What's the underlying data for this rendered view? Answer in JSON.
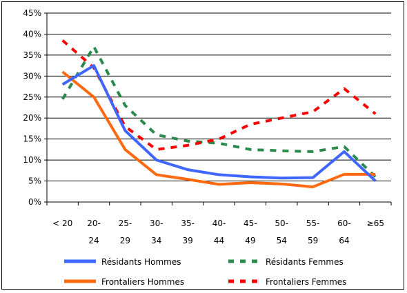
{
  "chart_data": {
    "type": "line",
    "title": "",
    "xlabel": "",
    "ylabel": "",
    "ylim": [
      0,
      45
    ],
    "yticks": [
      0,
      5,
      10,
      15,
      20,
      25,
      30,
      35,
      40,
      45
    ],
    "ytick_labels": [
      "0%",
      "5%",
      "10%",
      "15%",
      "20%",
      "25%",
      "30%",
      "35%",
      "40%",
      "45%"
    ],
    "grid": true,
    "legend_position": "bottom",
    "categories": [
      {
        "line1": "< 20",
        "line2": ""
      },
      {
        "line1": "20-",
        "line2": "24"
      },
      {
        "line1": "25-",
        "line2": "29"
      },
      {
        "line1": "30-",
        "line2": "34"
      },
      {
        "line1": "35-",
        "line2": "39"
      },
      {
        "line1": "40-",
        "line2": "44"
      },
      {
        "line1": "45-",
        "line2": "49"
      },
      {
        "line1": "50-",
        "line2": "54"
      },
      {
        "line1": "55-",
        "line2": "59"
      },
      {
        "line1": "60-",
        "line2": "64"
      },
      {
        "line1": "≥65",
        "line2": ""
      }
    ],
    "series": [
      {
        "name": "Résidants Hommes",
        "color": "#3f66ff",
        "style": "solid",
        "values": [
          28,
          32.5,
          17,
          10,
          7.7,
          6.5,
          6,
          5.7,
          5.8,
          12,
          5
        ]
      },
      {
        "name": "Résidants Femmes",
        "color": "#2a8a4e",
        "style": "dashed",
        "values": [
          24.5,
          37,
          23,
          16,
          14.5,
          14,
          12.5,
          12.2,
          12,
          13.2,
          6
        ]
      },
      {
        "name": "Frontaliers Hommes",
        "color": "#ff6a10",
        "style": "solid",
        "values": [
          31,
          25,
          12.5,
          6.5,
          5.4,
          4.2,
          4.6,
          4.3,
          3.6,
          6.6,
          6.6
        ]
      },
      {
        "name": "Frontaliers Femmes",
        "color": "#ff0000",
        "style": "dashed",
        "values": [
          38.5,
          32,
          18,
          12.5,
          13.5,
          15,
          18.5,
          20,
          21.5,
          27,
          21
        ]
      }
    ]
  }
}
